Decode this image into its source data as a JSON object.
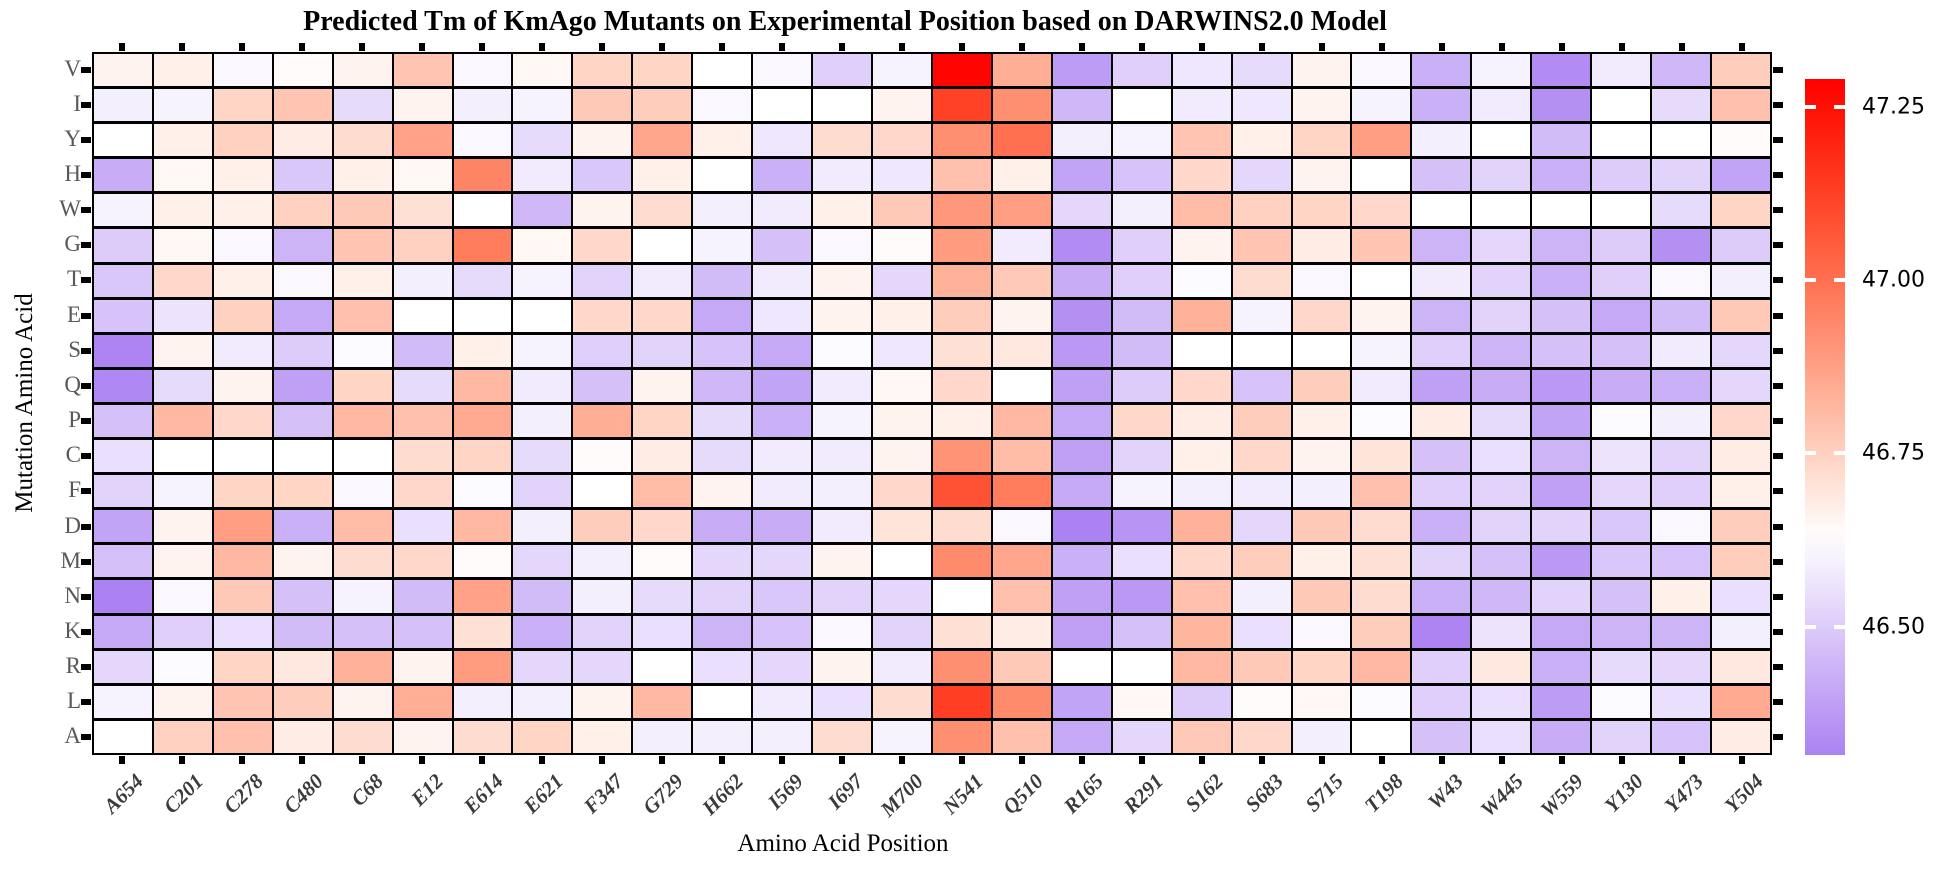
{
  "title": "Predicted Tm of KmAgo Mutants on Experimental Position based on DARWINS2.0 Model",
  "x_axis": {
    "label": "Amino Acid Position"
  },
  "y_axis": {
    "label": "Mutation Amino Acid"
  },
  "colorbar": {
    "tick_labels": [
      "47.25",
      "47.00",
      "46.75",
      "46.50"
    ],
    "tick_values": [
      47.25,
      47.0,
      46.75,
      46.5
    ],
    "vmax": 47.29,
    "vmin": 46.315,
    "white_point": 46.63,
    "top_color": "#fd0400",
    "mid_color": "#ffffff",
    "bottom_color": "#ac82f2"
  },
  "colors": {
    "grid_line": "#000000",
    "background": "#ffffff",
    "x_label": "#3b3b3b",
    "y_label": "#595959"
  },
  "chart_data": {
    "type": "heatmap",
    "title": "Predicted Tm of KmAgo Mutants on Experimental Position based on DARWINS2.0 Model",
    "xlabel": "Amino Acid Position",
    "ylabel": "Mutation Amino Acid",
    "legend_position": "right-colorbar",
    "grid": false,
    "value_range": [
      46.315,
      47.29
    ],
    "x": [
      "A654",
      "C201",
      "C278",
      "C480",
      "C68",
      "E12",
      "E614",
      "E621",
      "F347",
      "G729",
      "H662",
      "I569",
      "I697",
      "M700",
      "N541",
      "Q510",
      "R165",
      "R291",
      "S162",
      "S683",
      "S715",
      "T198",
      "W43",
      "W445",
      "W559",
      "Y130",
      "Y473",
      "Y504"
    ],
    "y": [
      "V",
      "I",
      "Y",
      "H",
      "W",
      "G",
      "T",
      "E",
      "S",
      "Q",
      "P",
      "C",
      "F",
      "D",
      "M",
      "N",
      "K",
      "R",
      "L",
      "A"
    ],
    "values": [
      [
        46.66,
        46.67,
        46.61,
        46.64,
        46.66,
        46.78,
        46.61,
        46.65,
        46.74,
        46.74,
        46.63,
        46.61,
        46.51,
        46.6,
        47.28,
        46.84,
        46.38,
        46.51,
        46.57,
        46.54,
        46.66,
        46.61,
        46.43,
        46.6,
        46.34,
        46.58,
        46.45,
        46.76
      ],
      [
        46.59,
        46.6,
        46.74,
        46.78,
        46.54,
        46.66,
        46.59,
        46.6,
        46.77,
        46.76,
        46.61,
        46.63,
        46.63,
        46.66,
        47.12,
        46.92,
        46.45,
        46.63,
        46.58,
        46.57,
        46.66,
        46.6,
        46.43,
        46.58,
        46.35,
        46.63,
        46.54,
        46.79
      ],
      [
        46.63,
        46.67,
        46.75,
        46.68,
        46.72,
        46.87,
        46.61,
        46.54,
        46.66,
        46.86,
        46.67,
        46.57,
        46.72,
        46.73,
        46.92,
        47.0,
        46.59,
        46.6,
        46.78,
        46.67,
        46.74,
        46.88,
        46.59,
        46.63,
        46.46,
        46.63,
        46.63,
        46.64
      ],
      [
        46.42,
        46.65,
        46.67,
        46.49,
        46.67,
        46.65,
        46.95,
        46.58,
        46.49,
        46.67,
        46.63,
        46.43,
        46.58,
        46.57,
        46.79,
        46.67,
        46.4,
        46.48,
        46.73,
        46.53,
        46.66,
        46.63,
        46.47,
        46.52,
        46.43,
        46.5,
        46.52,
        46.4
      ],
      [
        46.6,
        46.67,
        46.67,
        46.75,
        46.77,
        46.71,
        46.63,
        46.45,
        46.66,
        46.72,
        46.59,
        46.58,
        46.67,
        46.77,
        46.9,
        46.88,
        46.53,
        46.59,
        46.8,
        46.75,
        46.74,
        46.73,
        46.63,
        46.63,
        46.63,
        46.63,
        46.54,
        46.74
      ],
      [
        46.5,
        46.65,
        46.61,
        46.44,
        46.78,
        46.75,
        46.97,
        46.65,
        46.73,
        46.63,
        46.6,
        46.47,
        46.61,
        46.64,
        46.89,
        46.58,
        46.34,
        46.51,
        46.66,
        46.78,
        46.68,
        46.78,
        46.44,
        46.53,
        46.44,
        46.5,
        46.35,
        46.5
      ],
      [
        46.49,
        46.73,
        46.67,
        46.61,
        46.67,
        46.59,
        46.54,
        46.6,
        46.52,
        46.58,
        46.46,
        46.58,
        46.66,
        46.53,
        46.83,
        46.77,
        46.42,
        46.51,
        46.62,
        46.72,
        46.61,
        46.63,
        46.58,
        46.52,
        46.43,
        46.51,
        46.61,
        46.59
      ],
      [
        46.48,
        46.56,
        46.75,
        46.41,
        46.79,
        46.63,
        46.63,
        46.63,
        46.73,
        46.73,
        46.41,
        46.57,
        46.66,
        46.67,
        46.76,
        46.66,
        46.35,
        46.46,
        46.83,
        46.6,
        46.73,
        46.66,
        46.44,
        46.52,
        46.47,
        46.41,
        46.46,
        46.77
      ],
      [
        46.32,
        46.66,
        46.58,
        46.5,
        46.62,
        46.46,
        46.67,
        46.6,
        46.51,
        46.52,
        46.48,
        46.41,
        46.62,
        46.57,
        46.71,
        46.69,
        46.37,
        46.46,
        46.63,
        46.63,
        46.63,
        46.6,
        46.51,
        46.44,
        46.47,
        46.47,
        46.58,
        46.53
      ],
      [
        46.33,
        46.54,
        46.66,
        46.39,
        46.74,
        46.54,
        46.81,
        46.58,
        46.47,
        46.66,
        46.45,
        46.4,
        46.58,
        46.65,
        46.73,
        46.63,
        46.39,
        46.5,
        46.73,
        46.48,
        46.76,
        46.58,
        46.39,
        46.42,
        46.37,
        46.42,
        46.43,
        46.53
      ],
      [
        46.47,
        46.81,
        46.73,
        46.47,
        46.81,
        46.79,
        46.85,
        46.59,
        46.84,
        46.74,
        46.54,
        46.43,
        46.6,
        46.66,
        46.67,
        46.81,
        46.41,
        46.73,
        46.68,
        46.76,
        46.67,
        46.62,
        46.68,
        46.54,
        46.4,
        46.62,
        46.59,
        46.73
      ],
      [
        46.55,
        46.63,
        46.63,
        46.63,
        46.63,
        46.72,
        46.74,
        46.54,
        46.64,
        46.68,
        46.54,
        46.58,
        46.58,
        46.66,
        46.91,
        46.8,
        46.39,
        46.52,
        46.67,
        46.73,
        46.66,
        46.7,
        46.47,
        46.55,
        46.44,
        46.56,
        46.52,
        46.68
      ],
      [
        46.52,
        46.6,
        46.74,
        46.74,
        46.61,
        46.73,
        46.62,
        46.52,
        46.63,
        46.8,
        46.66,
        46.58,
        46.59,
        46.73,
        47.08,
        46.97,
        46.41,
        46.6,
        46.59,
        46.58,
        46.59,
        46.79,
        46.51,
        46.52,
        46.39,
        46.53,
        46.51,
        46.67
      ],
      [
        46.4,
        46.66,
        46.88,
        46.43,
        46.8,
        46.55,
        46.81,
        46.59,
        46.76,
        46.73,
        46.42,
        46.42,
        46.58,
        46.7,
        46.72,
        46.61,
        46.3,
        46.36,
        46.83,
        46.53,
        46.77,
        46.72,
        46.43,
        46.52,
        46.52,
        46.49,
        46.61,
        46.76
      ],
      [
        46.47,
        46.66,
        46.81,
        46.66,
        46.72,
        46.73,
        46.64,
        46.53,
        46.59,
        46.64,
        46.53,
        46.53,
        46.66,
        46.63,
        46.93,
        46.86,
        46.43,
        46.55,
        46.73,
        46.76,
        46.67,
        46.71,
        46.52,
        46.47,
        46.37,
        46.49,
        46.48,
        46.76
      ],
      [
        46.31,
        46.61,
        46.77,
        46.47,
        46.6,
        46.46,
        46.87,
        46.46,
        46.59,
        46.54,
        46.52,
        46.49,
        46.52,
        46.53,
        46.63,
        46.79,
        46.39,
        46.37,
        46.79,
        46.59,
        46.77,
        46.72,
        46.43,
        46.45,
        46.52,
        46.47,
        46.67,
        46.55
      ],
      [
        46.41,
        46.51,
        46.55,
        46.46,
        46.47,
        46.47,
        46.71,
        46.43,
        46.52,
        46.55,
        46.44,
        46.48,
        46.61,
        46.52,
        46.71,
        46.68,
        46.39,
        46.47,
        46.82,
        46.55,
        46.61,
        46.76,
        46.32,
        46.56,
        46.41,
        46.44,
        46.44,
        46.59
      ],
      [
        46.53,
        46.62,
        46.74,
        46.69,
        46.83,
        46.66,
        46.89,
        46.53,
        46.53,
        46.63,
        46.55,
        46.53,
        46.66,
        46.58,
        46.92,
        46.77,
        46.63,
        46.63,
        46.81,
        46.77,
        46.74,
        46.81,
        46.51,
        46.69,
        46.43,
        46.54,
        46.53,
        46.69
      ],
      [
        46.6,
        46.66,
        46.78,
        46.76,
        46.66,
        46.84,
        46.59,
        46.59,
        46.66,
        46.81,
        46.63,
        46.58,
        46.55,
        46.72,
        47.13,
        46.93,
        46.4,
        46.65,
        46.5,
        46.64,
        46.65,
        46.62,
        46.51,
        46.55,
        46.38,
        46.62,
        46.55,
        46.85
      ],
      [
        46.63,
        46.75,
        46.79,
        46.68,
        46.72,
        46.66,
        46.72,
        46.74,
        46.67,
        46.59,
        46.59,
        46.59,
        46.72,
        46.6,
        46.92,
        46.79,
        46.41,
        46.53,
        46.77,
        46.73,
        46.59,
        46.63,
        46.47,
        46.55,
        46.42,
        46.52,
        46.48,
        46.68
      ]
    ]
  }
}
